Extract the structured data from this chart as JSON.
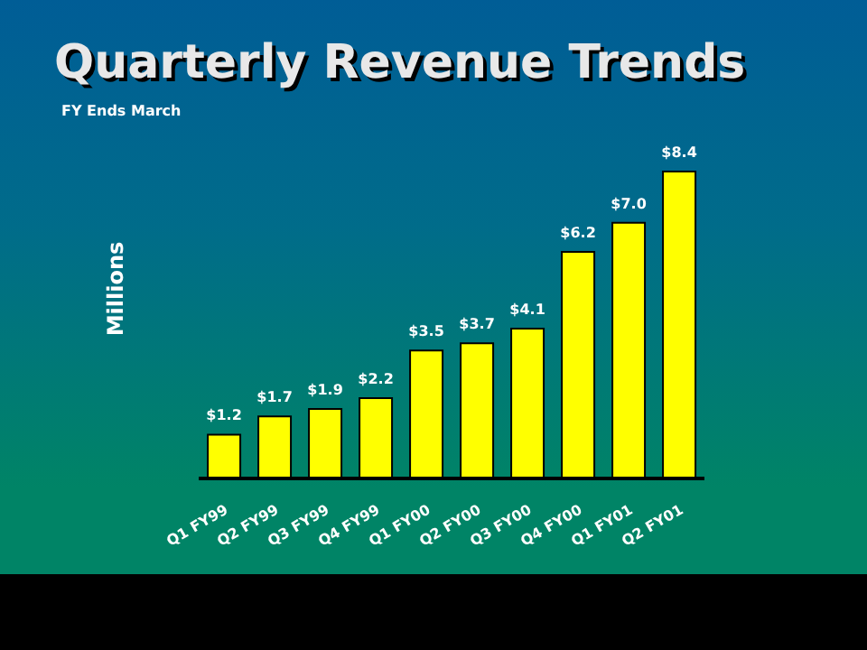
{
  "chart_data": {
    "type": "bar",
    "title": "Quarterly Revenue Trends",
    "subtitle": "FY Ends March",
    "ylabel": "Millions",
    "categories": [
      "Q1 FY99",
      "Q2 FY99",
      "Q3 FY99",
      "Q4 FY99",
      "Q1 FY00",
      "Q2 FY00",
      "Q3 FY00",
      "Q4 FY00",
      "Q1 FY01",
      "Q2 FY01"
    ],
    "values": [
      1.2,
      1.7,
      1.9,
      2.2,
      3.5,
      3.7,
      4.1,
      6.2,
      7.0,
      8.4
    ],
    "value_labels": [
      "$1.2",
      "$1.7",
      "$1.9",
      "$2.2",
      "$3.5",
      "$3.7",
      "$4.1",
      "$6.2",
      "$7.0",
      "$8.4"
    ],
    "color": "#ffff00",
    "grid": false,
    "legend": false
  }
}
